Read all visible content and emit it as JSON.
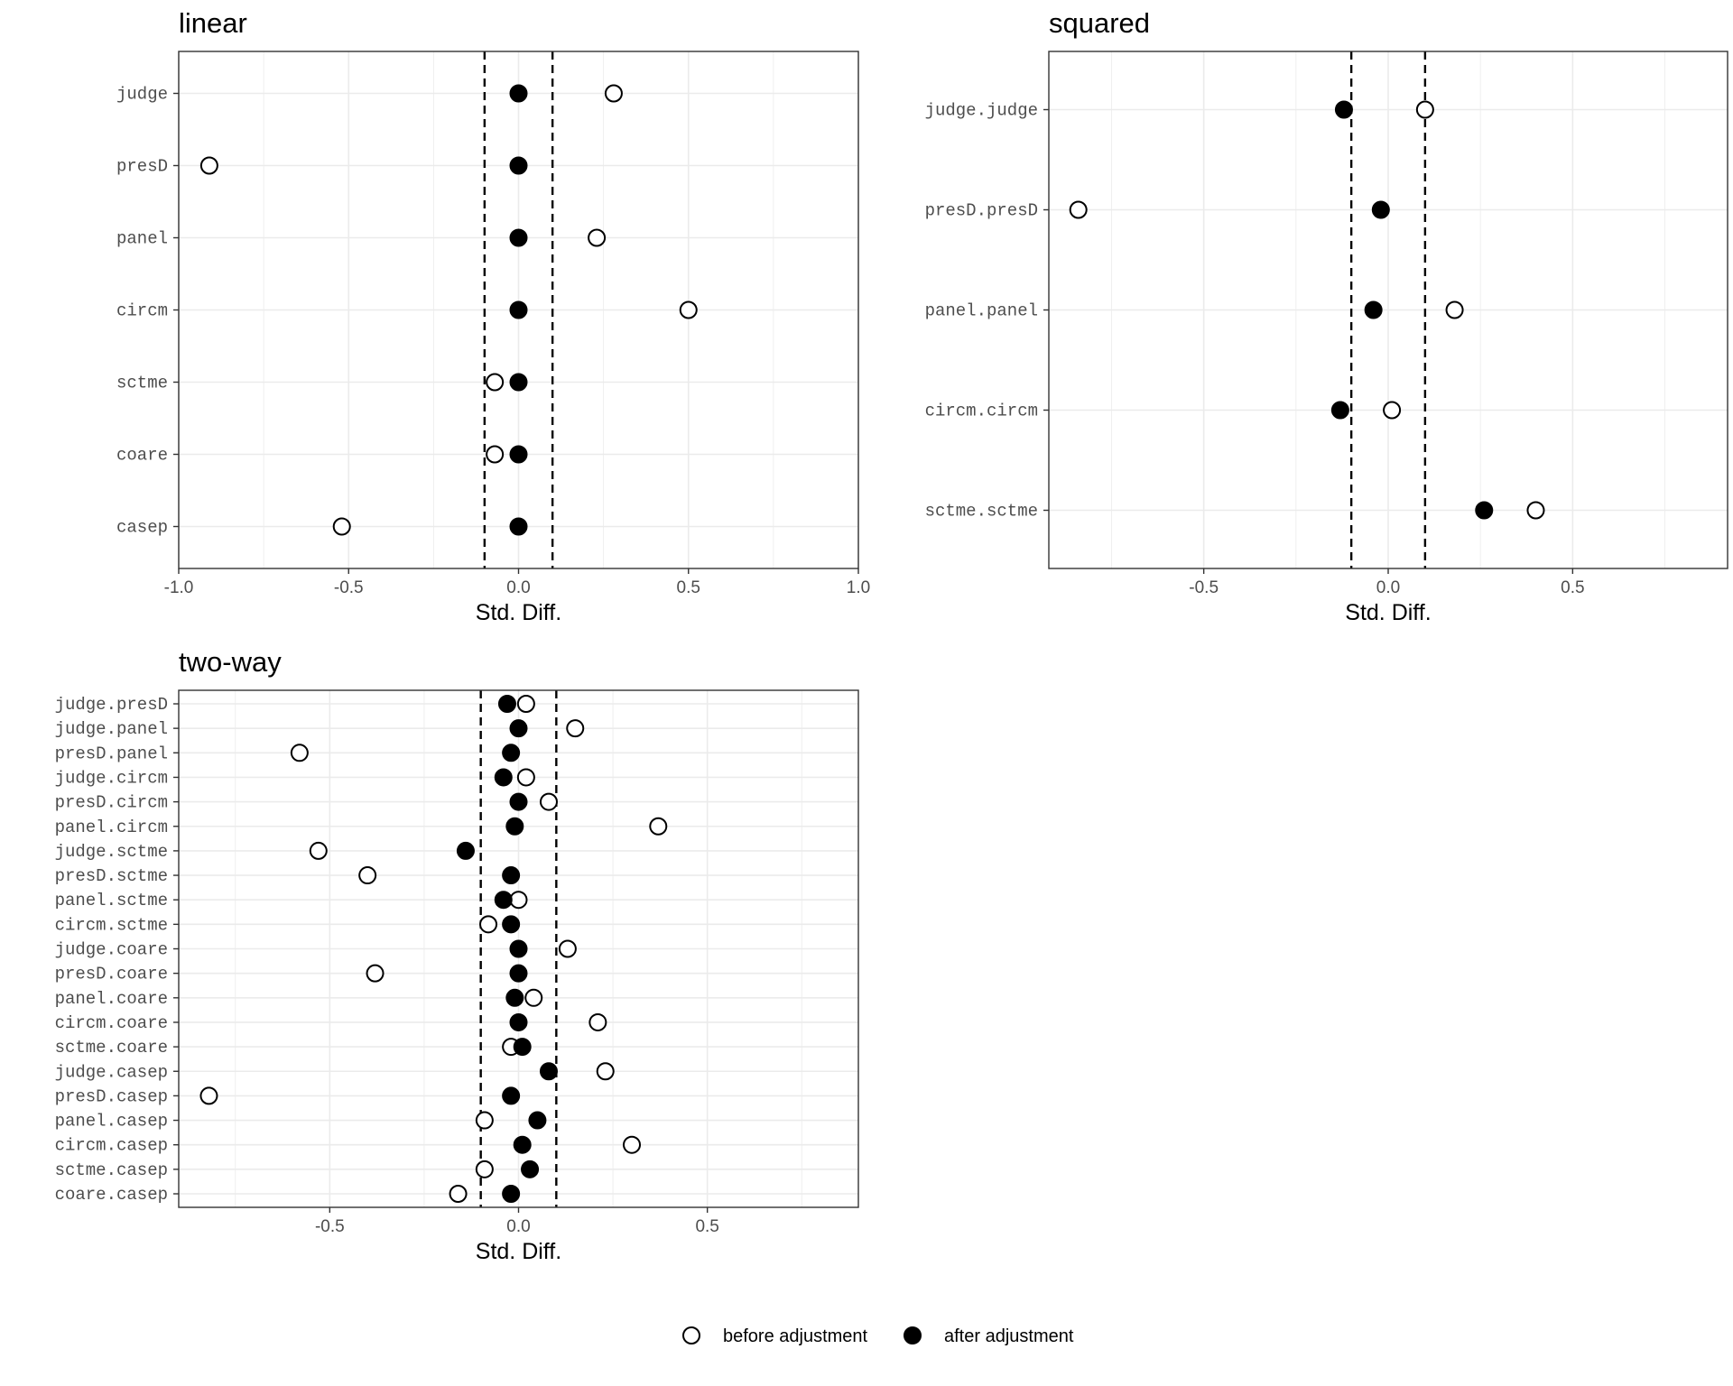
{
  "chart_data": [
    {
      "type": "scatter",
      "title": "linear",
      "xlabel": "Std. Diff.",
      "ylabel": "",
      "xlim": [
        -1.0,
        1.0
      ],
      "xticks": [
        "-1.0",
        "-0.5",
        "0.0",
        "0.5",
        "1.0"
      ],
      "xtick_values": [
        -1.0,
        -0.5,
        0.0,
        0.5,
        1.0
      ],
      "threshold_lines": [
        -0.1,
        0.1
      ],
      "grid": true,
      "categories": [
        "judge",
        "presD",
        "panel",
        "circm",
        "sctme",
        "coare",
        "casep"
      ],
      "series": [
        {
          "name": "before adjustment",
          "values": [
            0.28,
            -0.91,
            0.23,
            0.5,
            -0.07,
            -0.07,
            -0.52
          ]
        },
        {
          "name": "after adjustment",
          "values": [
            0.0,
            0.0,
            0.0,
            0.0,
            0.0,
            0.0,
            0.0
          ]
        }
      ]
    },
    {
      "type": "scatter",
      "title": "squared",
      "xlabel": "Std. Diff.",
      "ylabel": "",
      "xlim": [
        -0.92,
        0.92
      ],
      "xticks": [
        "-0.5",
        "0.0",
        "0.5"
      ],
      "xtick_values": [
        -0.5,
        0.0,
        0.5
      ],
      "threshold_lines": [
        -0.1,
        0.1
      ],
      "grid": true,
      "categories": [
        "judge.judge",
        "presD.presD",
        "panel.panel",
        "circm.circm",
        "sctme.sctme"
      ],
      "series": [
        {
          "name": "before adjustment",
          "values": [
            0.1,
            -0.84,
            0.18,
            0.01,
            0.4
          ]
        },
        {
          "name": "after adjustment",
          "values": [
            -0.12,
            -0.02,
            -0.04,
            -0.13,
            0.26
          ]
        }
      ]
    },
    {
      "type": "scatter",
      "title": "two-way",
      "xlabel": "Std. Diff.",
      "ylabel": "",
      "xlim": [
        -0.9,
        0.9
      ],
      "xticks": [
        "-0.5",
        "0.0",
        "0.5"
      ],
      "xtick_values": [
        -0.5,
        0.0,
        0.5
      ],
      "threshold_lines": [
        -0.1,
        0.1
      ],
      "grid": true,
      "categories": [
        "judge.presD",
        "judge.panel",
        "presD.panel",
        "judge.circm",
        "presD.circm",
        "panel.circm",
        "judge.sctme",
        "presD.sctme",
        "panel.sctme",
        "circm.sctme",
        "judge.coare",
        "presD.coare",
        "panel.coare",
        "circm.coare",
        "sctme.coare",
        "judge.casep",
        "presD.casep",
        "panel.casep",
        "circm.casep",
        "sctme.casep",
        "coare.casep"
      ],
      "series": [
        {
          "name": "before adjustment",
          "values": [
            0.02,
            0.15,
            -0.58,
            0.02,
            0.08,
            0.37,
            -0.53,
            -0.4,
            0.0,
            -0.08,
            0.13,
            -0.38,
            0.04,
            0.21,
            -0.02,
            0.23,
            -0.82,
            -0.09,
            0.3,
            -0.09,
            -0.16
          ]
        },
        {
          "name": "after adjustment",
          "values": [
            -0.03,
            0.0,
            -0.02,
            -0.04,
            0.0,
            -0.01,
            -0.14,
            -0.02,
            -0.04,
            -0.02,
            0.0,
            0.0,
            -0.01,
            0.0,
            0.01,
            0.08,
            -0.02,
            0.05,
            0.01,
            0.03,
            -0.02
          ]
        }
      ]
    }
  ],
  "legend": {
    "placement": "bottom",
    "items": [
      {
        "label": "before adjustment",
        "marker": "open-circle"
      },
      {
        "label": "after adjustment",
        "marker": "filled-circle"
      }
    ]
  }
}
